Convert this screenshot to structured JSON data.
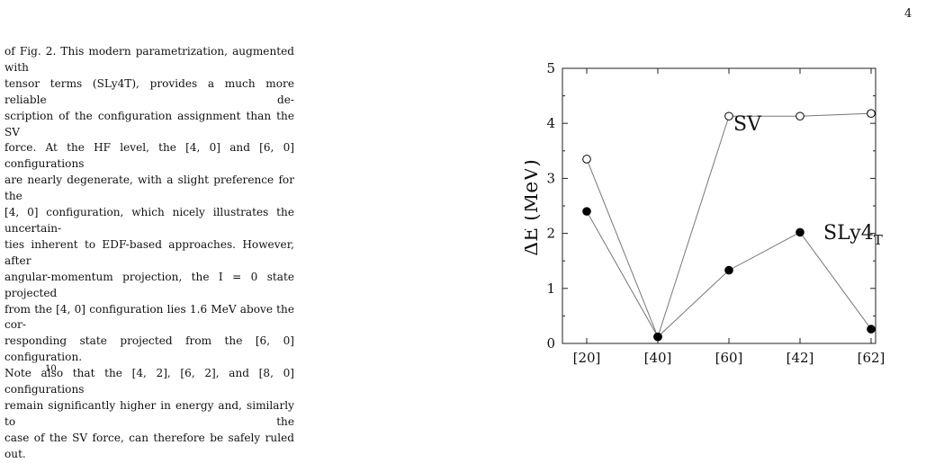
{
  "page": {
    "number": "4"
  },
  "paragraph": {
    "lines": [
      "of Fig. 2. This modern parametrization, augmented with",
      "tensor terms (SLy4T), provides a much more reliable de-",
      "scription of the configuration assignment than the SV",
      "force. At the HF level, the [4, 0] and [6, 0] configurations",
      "are nearly degenerate, with a slight preference for the",
      "[4, 0] configuration, which nicely illustrates the uncertain-",
      "ties inherent to EDF-based approaches. However, after",
      "angular-momentum projection, the I = 0 state projected",
      "from the [4, 0] configuration lies 1.6 MeV above the cor-",
      "responding state projected from the [6, 0] configuration.",
      "Note also that the [4, 2], [6, 2], and [8, 0] configurations",
      "remain significantly higher in energy and, similarly to the",
      "case of the SV force, can therefore be safely ruled out."
    ]
  },
  "footer": {
    "mark": "10"
  },
  "chart_data": {
    "type": "line",
    "categories": [
      "[20]",
      "[40]",
      "[60]",
      "[42]",
      "[62]"
    ],
    "ylabel": "ΔE (MeV)",
    "ylim": [
      0,
      5
    ],
    "yticks": [
      "0",
      "1",
      "2",
      "3",
      "4",
      "5"
    ],
    "grid": false,
    "series": [
      {
        "name": "SV",
        "marker": "open-circle",
        "color": "#777777",
        "values": [
          3.35,
          0.12,
          4.13,
          4.13,
          4.18
        ]
      },
      {
        "name": "SLy4T",
        "marker": "filled-circle",
        "color": "#777777",
        "values": [
          2.4,
          0.12,
          1.33,
          2.02,
          0.26
        ]
      }
    ]
  }
}
